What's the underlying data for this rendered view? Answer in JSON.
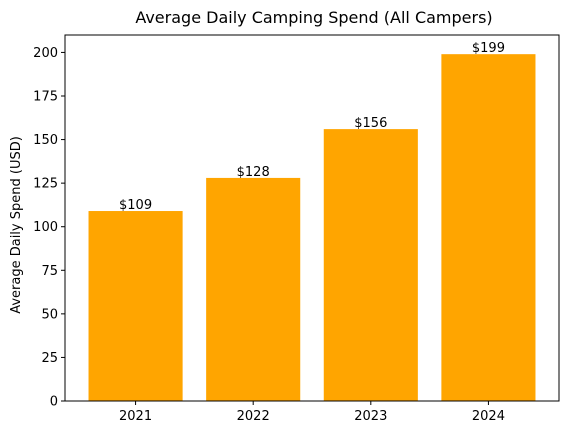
{
  "chart_data": {
    "type": "bar",
    "title": "Average Daily Camping Spend (All Campers)",
    "xlabel": "",
    "ylabel": "Average Daily Spend (USD)",
    "categories": [
      "2021",
      "2022",
      "2023",
      "2024"
    ],
    "values": [
      109,
      128,
      156,
      199
    ],
    "data_labels": [
      "$109",
      "$128",
      "$156",
      "$199"
    ],
    "ylim": [
      0,
      210
    ],
    "yticks": [
      0,
      25,
      50,
      75,
      100,
      125,
      150,
      175,
      200
    ],
    "grid": false,
    "legend": "none",
    "bar_color": "#FFA500"
  }
}
